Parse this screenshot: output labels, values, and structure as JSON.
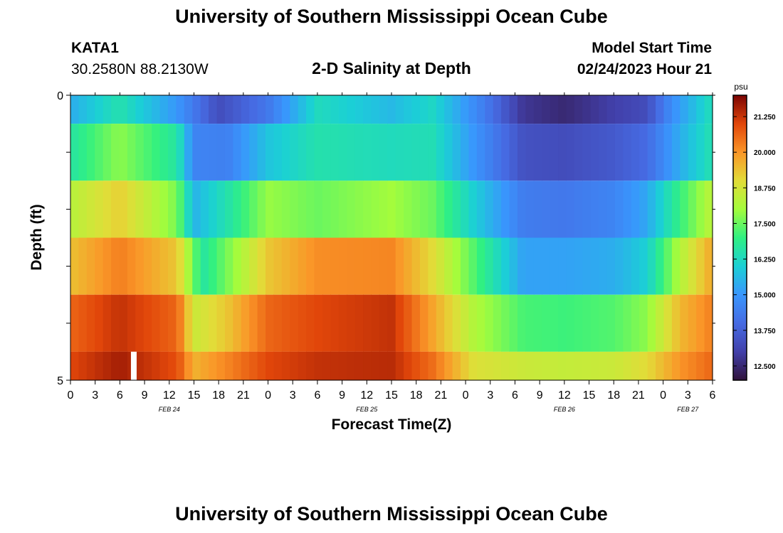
{
  "header": {
    "title": "University of Southern Mississippi Ocean Cube",
    "station_id": "KATA1",
    "coordinates": "30.2580N  88.2130W",
    "subtitle": "2-D Salinity at Depth",
    "model_start_label": "Model Start Time",
    "model_start_value": "02/24/2023 Hour 21"
  },
  "footer": {
    "title": "University of Southern Mississippi Ocean Cube"
  },
  "chart_data": {
    "type": "heatmap",
    "title": "2-D Salinity at Depth",
    "xlabel": "Forecast Time(Z)",
    "ylabel": "Depth (ft)",
    "y_tick_labels": [
      "0",
      "5"
    ],
    "ylim": [
      0,
      5
    ],
    "x_tick_labels": [
      "0",
      "3",
      "6",
      "9",
      "12",
      "15",
      "18",
      "21",
      "0",
      "3",
      "6",
      "9",
      "12",
      "15",
      "18",
      "21",
      "0",
      "3",
      "6",
      "9",
      "12",
      "15",
      "18",
      "21",
      "0",
      "3",
      "6"
    ],
    "date_labels": [
      {
        "label": "FEB 24",
        "hour": 12
      },
      {
        "label": "FEB 25",
        "hour": 36
      },
      {
        "label": "FEB 26",
        "hour": 60
      },
      {
        "label": "FEB 27",
        "hour": 75
      }
    ],
    "hours_range": [
      0,
      78
    ],
    "colorbar": {
      "unit": "psu",
      "range": [
        12.0,
        22.0
      ],
      "tick_labels": [
        "21.250",
        "20.000",
        "18.750",
        "17.500",
        "16.250",
        "15.000",
        "13.750",
        "12.500"
      ],
      "tick_values": [
        21.25,
        20.0,
        18.75,
        17.5,
        16.25,
        15.0,
        13.75,
        12.5
      ]
    },
    "layers": [
      {
        "depth_range": [
          0.0,
          0.5
        ],
        "keyframes": [
          [
            0,
            15.4
          ],
          [
            6,
            16.5
          ],
          [
            13,
            15.0
          ],
          [
            18,
            13.3
          ],
          [
            24,
            14.3
          ],
          [
            30,
            16.3
          ],
          [
            39,
            15.6
          ],
          [
            44,
            16.2
          ],
          [
            50,
            14.5
          ],
          [
            55,
            12.8
          ],
          [
            60,
            12.5
          ],
          [
            66,
            13.0
          ],
          [
            70,
            13.3
          ],
          [
            73,
            14.8
          ],
          [
            78,
            16.4
          ]
        ]
      },
      {
        "depth_range": [
          0.5,
          1.5
        ],
        "keyframes": [
          [
            0,
            16.6
          ],
          [
            6,
            17.8
          ],
          [
            13,
            16.6
          ],
          [
            15,
            14.6
          ],
          [
            19,
            14.5
          ],
          [
            24,
            15.8
          ],
          [
            30,
            16.5
          ],
          [
            39,
            16.3
          ],
          [
            44,
            16.4
          ],
          [
            49,
            15.0
          ],
          [
            55,
            13.4
          ],
          [
            60,
            13.3
          ],
          [
            66,
            13.6
          ],
          [
            70,
            14.0
          ],
          [
            74,
            15.4
          ],
          [
            78,
            16.5
          ]
        ]
      },
      {
        "depth_range": [
          1.5,
          2.5
        ],
        "keyframes": [
          [
            0,
            18.3
          ],
          [
            6,
            19.2
          ],
          [
            13,
            17.6
          ],
          [
            15,
            15.5
          ],
          [
            19,
            16.5
          ],
          [
            24,
            17.9
          ],
          [
            30,
            17.5
          ],
          [
            39,
            18.0
          ],
          [
            44,
            17.5
          ],
          [
            49,
            16.0
          ],
          [
            55,
            14.4
          ],
          [
            60,
            14.3
          ],
          [
            66,
            14.6
          ],
          [
            70,
            15.3
          ],
          [
            74,
            17.0
          ],
          [
            78,
            18.4
          ]
        ]
      },
      {
        "depth_range": [
          2.5,
          3.5
        ],
        "keyframes": [
          [
            0,
            19.4
          ],
          [
            6,
            20.3
          ],
          [
            13,
            19.3
          ],
          [
            16,
            16.6
          ],
          [
            19,
            17.6
          ],
          [
            24,
            19.3
          ],
          [
            30,
            20.1
          ],
          [
            39,
            20.2
          ],
          [
            44,
            19.0
          ],
          [
            49,
            17.3
          ],
          [
            55,
            15.2
          ],
          [
            60,
            15.2
          ],
          [
            66,
            15.4
          ],
          [
            70,
            16.0
          ],
          [
            74,
            18.2
          ],
          [
            78,
            19.8
          ]
        ]
      },
      {
        "depth_range": [
          3.5,
          4.5
        ],
        "keyframes": [
          [
            0,
            20.6
          ],
          [
            6,
            21.3
          ],
          [
            13,
            20.6
          ],
          [
            15,
            18.6
          ],
          [
            19,
            19.3
          ],
          [
            24,
            20.6
          ],
          [
            30,
            21.0
          ],
          [
            39,
            21.3
          ],
          [
            44,
            19.8
          ],
          [
            49,
            18.2
          ],
          [
            55,
            17.2
          ],
          [
            60,
            17.1
          ],
          [
            66,
            17.3
          ],
          [
            70,
            17.8
          ],
          [
            74,
            19.5
          ],
          [
            78,
            20.3
          ]
        ]
      },
      {
        "depth_range": [
          4.5,
          5.0
        ],
        "keyframes": [
          [
            0,
            21.0
          ],
          [
            6,
            21.6
          ],
          [
            13,
            20.9
          ],
          [
            15,
            19.6
          ],
          [
            19,
            20.2
          ],
          [
            24,
            21.0
          ],
          [
            30,
            21.3
          ],
          [
            39,
            21.4
          ],
          [
            44,
            20.5
          ],
          [
            49,
            18.9
          ],
          [
            55,
            18.6
          ],
          [
            60,
            18.5
          ],
          [
            66,
            18.6
          ],
          [
            70,
            19.0
          ],
          [
            74,
            20.0
          ],
          [
            78,
            20.6
          ]
        ]
      }
    ],
    "missing_data": [
      {
        "hour": 7,
        "depth_range": [
          4.5,
          5.0
        ]
      }
    ]
  }
}
